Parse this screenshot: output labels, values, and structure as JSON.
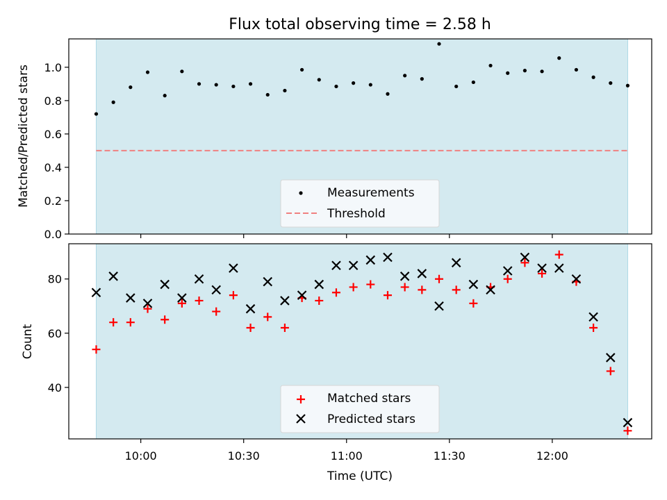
{
  "chart_data": [
    {
      "type": "scatter",
      "title": "Flux total observing time = 2.58 h",
      "ylabel": "Matched/Predicted stars",
      "xlabel": "",
      "xlim": [
        "09:39",
        "12:29"
      ],
      "ylim": [
        0,
        1.17
      ],
      "yticks": [
        "0.0",
        "0.2",
        "0.4",
        "0.6",
        "0.8",
        "1.0"
      ],
      "shade": {
        "color": "#d4eaf0",
        "edge": "#add8e6",
        "x_range": [
          "09:47",
          "12:22"
        ]
      },
      "threshold": {
        "name": "Threshold",
        "y": 0.5,
        "color": "#f08080",
        "x_range": [
          "09:47",
          "12:22"
        ]
      },
      "legend": {
        "position": "lower center",
        "entries": [
          "Measurements",
          "Threshold"
        ]
      },
      "series": [
        {
          "name": "Measurements",
          "color": "#000000",
          "marker": "dot",
          "x": [
            "09:47",
            "09:52",
            "09:57",
            "10:02",
            "10:07",
            "10:12",
            "10:17",
            "10:22",
            "10:27",
            "10:32",
            "10:37",
            "10:42",
            "10:47",
            "10:52",
            "10:57",
            "11:02",
            "11:07",
            "11:12",
            "11:17",
            "11:22",
            "11:27",
            "11:32",
            "11:37",
            "11:42",
            "11:47",
            "11:52",
            "11:57",
            "12:02",
            "12:07",
            "12:12",
            "12:17",
            "12:22"
          ],
          "y": [
            0.72,
            0.79,
            0.88,
            0.97,
            0.83,
            0.975,
            0.9,
            0.895,
            0.885,
            0.9,
            0.835,
            0.86,
            0.985,
            0.925,
            0.885,
            0.905,
            0.895,
            0.84,
            0.95,
            0.93,
            1.14,
            0.885,
            0.91,
            1.01,
            0.965,
            0.98,
            0.975,
            1.055,
            0.985,
            0.94,
            0.905,
            0.89
          ]
        }
      ]
    },
    {
      "type": "scatter",
      "title": "",
      "xlabel": "Time (UTC)",
      "ylabel": "Count",
      "xlim": [
        "09:39",
        "12:29"
      ],
      "ylim": [
        21,
        93
      ],
      "xticks": [
        "10:00",
        "10:30",
        "11:00",
        "11:30",
        "12:00"
      ],
      "yticks": [
        "40",
        "60",
        "80"
      ],
      "shade": {
        "color": "#d4eaf0",
        "edge": "#add8e6",
        "x_range": [
          "09:47",
          "12:22"
        ]
      },
      "legend": {
        "position": "lower center",
        "entries": [
          "Matched stars",
          "Predicted stars"
        ]
      },
      "x": [
        "09:47",
        "09:52",
        "09:57",
        "10:02",
        "10:07",
        "10:12",
        "10:17",
        "10:22",
        "10:27",
        "10:32",
        "10:37",
        "10:42",
        "10:47",
        "10:52",
        "10:57",
        "11:02",
        "11:07",
        "11:12",
        "11:17",
        "11:22",
        "11:27",
        "11:32",
        "11:37",
        "11:42",
        "11:47",
        "11:52",
        "11:57",
        "12:02",
        "12:07",
        "12:12",
        "12:17",
        "12:22"
      ],
      "series": [
        {
          "name": "Matched stars",
          "color": "#ff0000",
          "marker": "plus",
          "y": [
            54,
            64,
            64,
            69,
            65,
            71,
            72,
            68,
            74,
            62,
            66,
            62,
            73,
            72,
            75,
            77,
            78,
            74,
            77,
            76,
            80,
            76,
            71,
            77,
            80,
            86,
            82,
            89,
            79,
            62,
            46,
            24
          ]
        },
        {
          "name": "Predicted stars",
          "color": "#000000",
          "marker": "x",
          "y": [
            75,
            81,
            73,
            71,
            78,
            73,
            80,
            76,
            84,
            69,
            79,
            72,
            74,
            78,
            85,
            85,
            87,
            88,
            81,
            82,
            70,
            86,
            78,
            76,
            83,
            88,
            84,
            84,
            80,
            66,
            51,
            27
          ]
        }
      ]
    }
  ]
}
